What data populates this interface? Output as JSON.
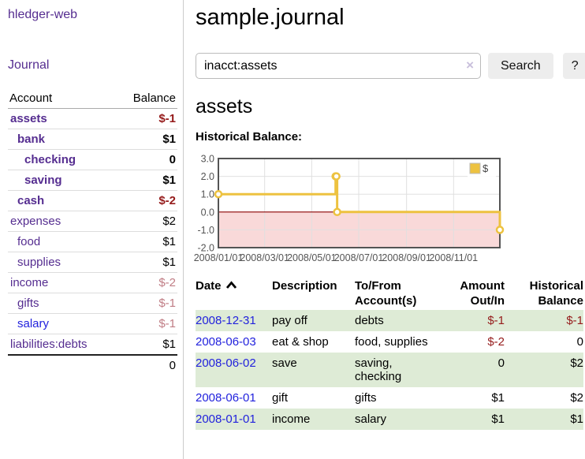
{
  "colors": {
    "purple_link": "#552d90",
    "blue_link": "#2222dd",
    "negative_strong": "#951b1b",
    "negative_soft": "#c07d85",
    "row_stripe_green": "#deebd6",
    "series_gold": "#edc240",
    "chart_negative_fill": "#f9d9d9",
    "chart_zero_line": "#8b0000"
  },
  "sidebar": {
    "brand": "hledger-web",
    "nav": {
      "journal": "Journal"
    },
    "accounts": {
      "headers": {
        "account": "Account",
        "balance": "Balance"
      },
      "rows": [
        {
          "name": "assets",
          "balance": "$-1"
        },
        {
          "name": "bank",
          "balance": "$1"
        },
        {
          "name": "checking",
          "balance": "0"
        },
        {
          "name": "saving",
          "balance": "$1"
        },
        {
          "name": "cash",
          "balance": "$-2"
        },
        {
          "name": "expenses",
          "balance": "$2"
        },
        {
          "name": "food",
          "balance": "$1"
        },
        {
          "name": "supplies",
          "balance": "$1"
        },
        {
          "name": "income",
          "balance": "$-2"
        },
        {
          "name": "gifts",
          "balance": "$-1"
        },
        {
          "name": "salary",
          "balance": "$-1"
        },
        {
          "name": "liabilities:debts",
          "balance": "$1"
        }
      ],
      "total": "0"
    }
  },
  "main": {
    "title": "sample.journal",
    "search": {
      "value": "inacct:assets",
      "clear_icon": "×",
      "button": "Search",
      "help_button": "?"
    },
    "account_heading": "assets",
    "chart_label": "Historical Balance:"
  },
  "chart_data": {
    "type": "line",
    "style": "step-after",
    "title": "Historical Balance:",
    "series": [
      {
        "name": "$",
        "color": "#edc240",
        "points": [
          [
            "2008-01-01",
            1
          ],
          [
            "2008-06-01",
            2
          ],
          [
            "2008-06-02",
            2
          ],
          [
            "2008-06-03",
            0
          ],
          [
            "2008-12-31",
            -1
          ]
        ]
      }
    ],
    "x_range": [
      "2008-01-01",
      "2008-12-31"
    ],
    "ylim": [
      -2,
      3
    ],
    "yticks": [
      {
        "label": "3.0",
        "value": 3
      },
      {
        "label": "2.0",
        "value": 2
      },
      {
        "label": "1.0",
        "value": 1
      },
      {
        "label": "0.0",
        "value": 0
      },
      {
        "label": "-1.0",
        "value": -1
      },
      {
        "label": "-2.0",
        "value": -2
      }
    ],
    "xticks": [
      {
        "label": "2008/01/01",
        "date": "2008-01-01"
      },
      {
        "label": "2008/03/01",
        "date": "2008-03-01"
      },
      {
        "label": "2008/05/01",
        "date": "2008-05-01"
      },
      {
        "label": "2008/07/01",
        "date": "2008-07-01"
      },
      {
        "label": "2008/09/01",
        "date": "2008-09-01"
      },
      {
        "label": "2008/11/01",
        "date": "2008-11-01"
      }
    ],
    "legend": {
      "position": "top-right",
      "entries": [
        "$"
      ]
    },
    "grid": true,
    "negative_region_fill": "#f9d9d9",
    "zero_line_color": "#8b0000"
  },
  "register": {
    "headers": {
      "date": "Date",
      "description": "Description",
      "accounts": "To/From Account(s)",
      "amount": "Amount Out/In",
      "balance": "Historical Balance"
    },
    "rows": [
      {
        "date": "2008-12-31",
        "description": "pay off",
        "accounts": "debts",
        "amount": "$-1",
        "balance": "$-1"
      },
      {
        "date": "2008-06-03",
        "description": "eat & shop",
        "accounts": "food, supplies",
        "amount": "$-2",
        "balance": "0"
      },
      {
        "date": "2008-06-02",
        "description": "save",
        "accounts": "saving, checking",
        "amount": "0",
        "balance": "$2"
      },
      {
        "date": "2008-06-01",
        "description": "gift",
        "accounts": "gifts",
        "amount": "$1",
        "balance": "$2"
      },
      {
        "date": "2008-01-01",
        "description": "income",
        "accounts": "salary",
        "amount": "$1",
        "balance": "$1"
      }
    ]
  }
}
